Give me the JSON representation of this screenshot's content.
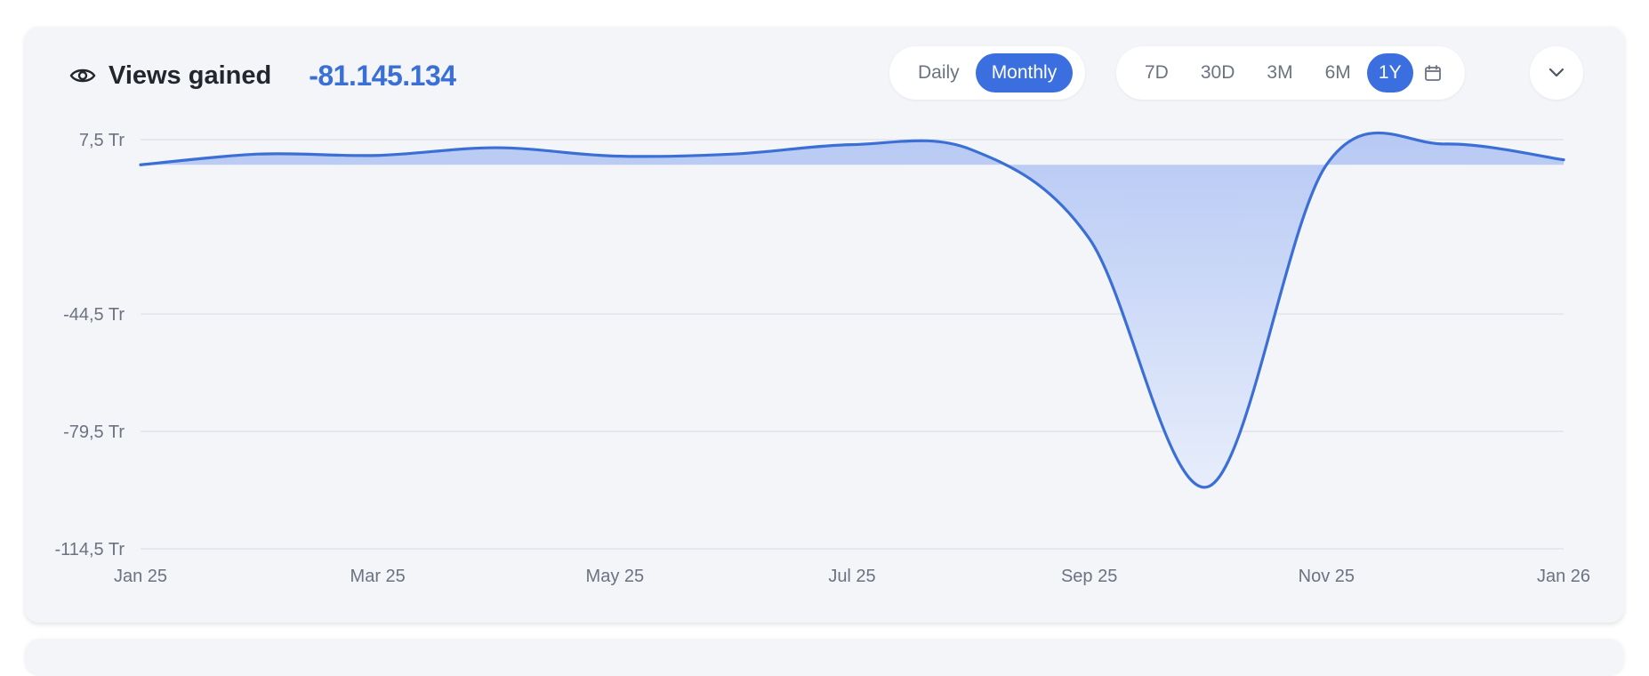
{
  "header": {
    "title": "Views gained",
    "value": "-81.145.134",
    "icon": "eye-icon",
    "granularity": [
      {
        "label": "Daily",
        "active": false
      },
      {
        "label": "Monthly",
        "active": true
      }
    ],
    "ranges": [
      {
        "label": "7D",
        "active": false
      },
      {
        "label": "30D",
        "active": false
      },
      {
        "label": "3M",
        "active": false
      },
      {
        "label": "6M",
        "active": false
      },
      {
        "label": "1Y",
        "active": true
      }
    ],
    "calendar_icon": "calendar-icon",
    "more_icon": "chevron-down-icon"
  },
  "chart_data": {
    "type": "area",
    "title": "",
    "xlabel": "",
    "ylabel": "",
    "x": [
      "2025-01",
      "2025-02",
      "2025-03",
      "2025-04",
      "2025-05",
      "2025-06",
      "2025-07",
      "2025-08",
      "2025-09",
      "2025-10",
      "2025-11",
      "2025-12",
      "2026-01"
    ],
    "series": [
      {
        "values": [
          0.0,
          3.2,
          2.8,
          5.1,
          2.6,
          3.2,
          6.0,
          4.6,
          -22.0,
          -96.0,
          0.0,
          6.2,
          1.5
        ]
      }
    ],
    "x_tick_labels": [
      {
        "x": "2025-01",
        "label": "Jan 25"
      },
      {
        "x": "2025-03",
        "label": "Mar 25"
      },
      {
        "x": "2025-05",
        "label": "May 25"
      },
      {
        "x": "2025-07",
        "label": "Jul 25"
      },
      {
        "x": "2025-09",
        "label": "Sep 25"
      },
      {
        "x": "2025-11",
        "label": "Nov 25"
      },
      {
        "x": "2026-01",
        "label": "Jan 26"
      }
    ],
    "y_ticks": [
      {
        "value": 7.5,
        "label": "7,5 Tr"
      },
      {
        "value": -44.5,
        "label": "-44,5 Tr"
      },
      {
        "value": -79.5,
        "label": "-79,5 Tr"
      },
      {
        "value": -114.5,
        "label": "-114,5 Tr"
      }
    ],
    "ylim": [
      -114.5,
      7.5
    ],
    "grid": true,
    "colors": {
      "line": "#3b6fd6",
      "fill_top": "#b7c9f4",
      "fill_bottom": "#e7edfb",
      "grid": "#dcdfe6",
      "tick": "#6b7280"
    }
  }
}
